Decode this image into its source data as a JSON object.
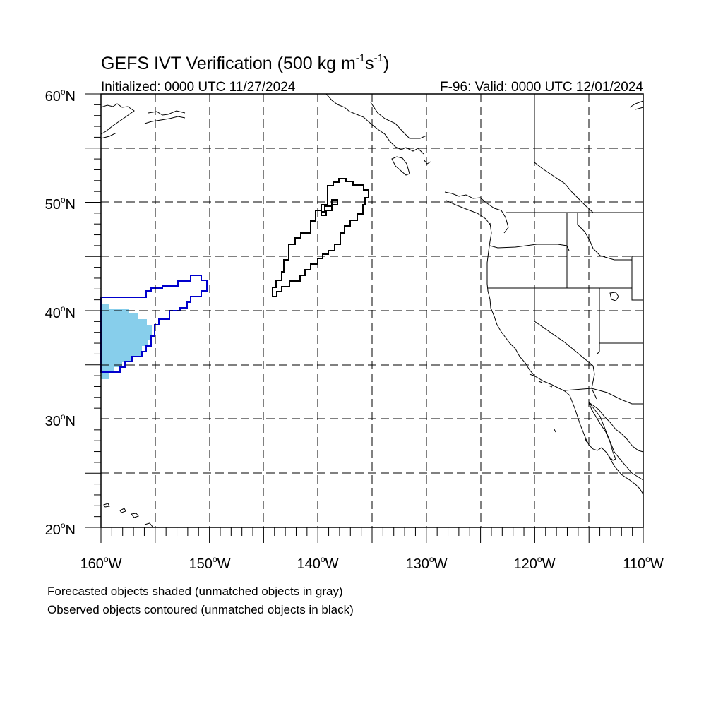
{
  "title": {
    "main": "GEFS IVT Verification (500 kg m",
    "exp1": "-1",
    "unit_s": "s",
    "exp2": "-1",
    "close": ")"
  },
  "subtitle_left": "Initialized: 0000 UTC 11/27/2024",
  "subtitle_right": "F-96: Valid: 0000 UTC 12/01/2024",
  "lat_labels": [
    "60",
    "50",
    "40",
    "30",
    "20"
  ],
  "lat_suffix": "N",
  "lon_labels": [
    "160",
    "150",
    "140",
    "130",
    "120",
    "110"
  ],
  "lon_suffix": "W",
  "degree_symbol": "o",
  "footnote_1": "Forecasted objects shaded (unmatched objects in gray)",
  "footnote_2": "Observed objects contoured (unmatched objects in black)",
  "colors": {
    "forecast_matched": "#87CEEB",
    "observed_matched": "#0000CD",
    "observed_unmatched": "#000000"
  }
}
